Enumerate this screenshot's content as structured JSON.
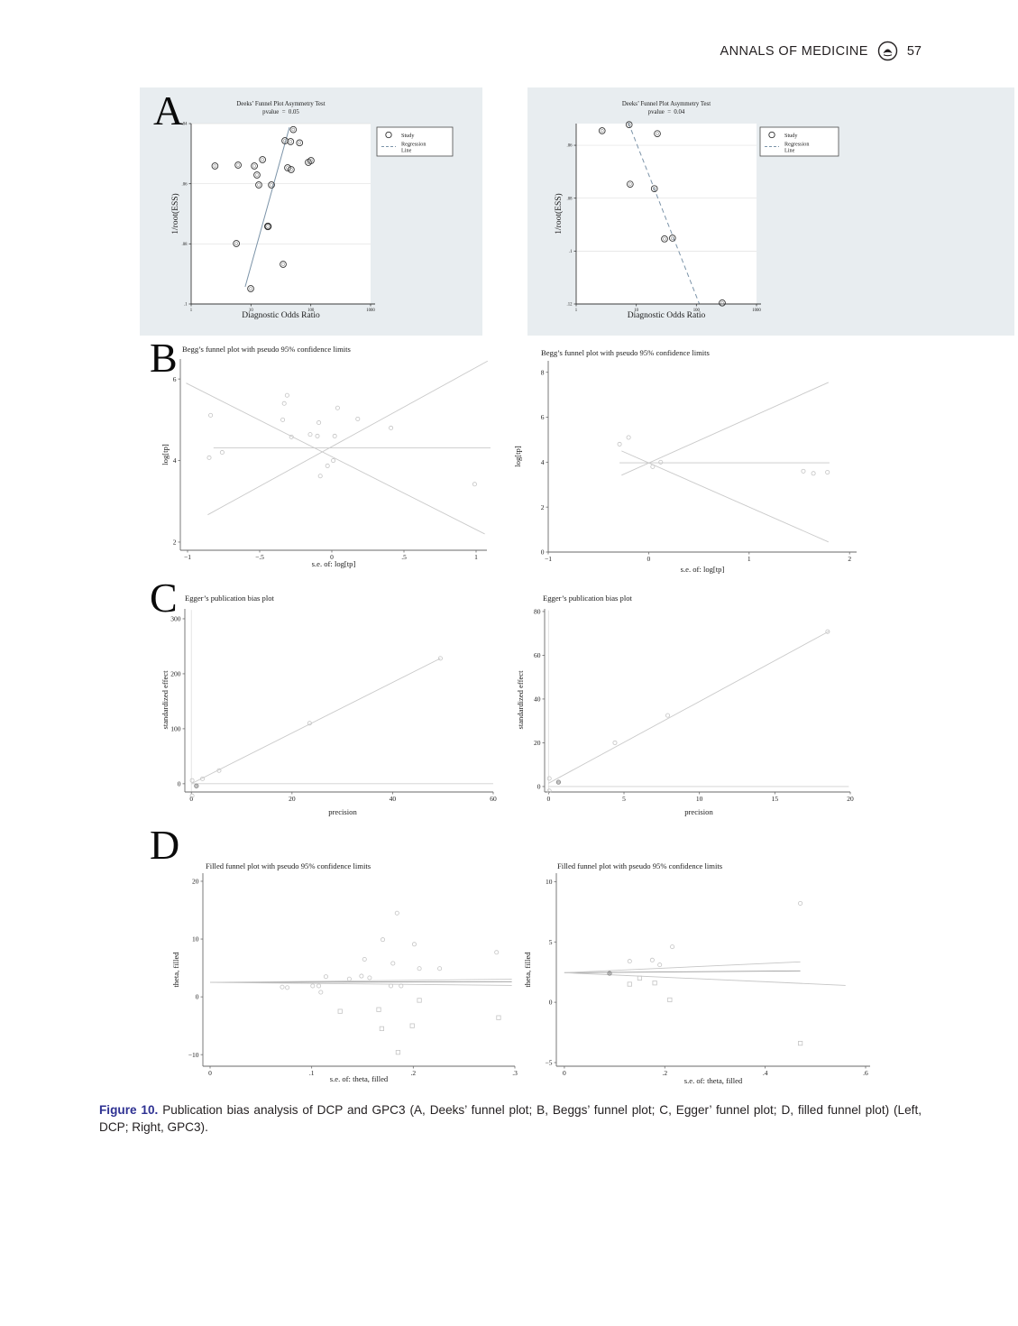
{
  "header": {
    "journal": "ANNALS OF MEDICINE",
    "page_number": "57"
  },
  "panels": [
    {
      "letter": "A"
    },
    {
      "letter": "B"
    },
    {
      "letter": "C"
    },
    {
      "letter": "D"
    }
  ],
  "caption": {
    "label": "Figure 10.",
    "text": " Publication bias analysis of DCP and GPC3 (A, Deeks’ funnel plot; B, Beggs’ funnel plot; C, Egger’ funnel plot; D, filled funnel plot) (Left, DCP; Right, GPC3)."
  },
  "colors": {
    "panel_a_background": "#e8edf0",
    "figure_label": "#2e3192",
    "regression_line": "#7b93a8",
    "header_text": "#231f20"
  },
  "chart_data": [
    {
      "id": "deeks-dcp",
      "panel": "A",
      "side": "left",
      "type": "scatter",
      "title_lines": [
        "Deeks’ Funnel Plot Asymmetry Test",
        "pvalue  =  0.05"
      ],
      "xlabel": "Diagnostic Odds Ratio",
      "ylabel": "1/root(ESS)",
      "x_log": true,
      "x_domain": [
        1,
        1000
      ],
      "y_domain": [
        0.04,
        0.1
      ],
      "x_ticks": [
        {
          "v": 1,
          "l": "1"
        },
        {
          "v": 10,
          "l": "10"
        },
        {
          "v": 100,
          "l": "100"
        },
        {
          "v": 1000,
          "l": "1000"
        }
      ],
      "y_ticks": [
        {
          "v": 0.04,
          "l": ".04"
        },
        {
          "v": 0.06,
          "l": ".06"
        },
        {
          "v": 0.08,
          "l": ".08"
        },
        {
          "v": 0.1,
          "l": ".1"
        }
      ],
      "grid_y": true,
      "marker": "ring",
      "legend": {
        "items": [
          {
            "marker": "circle",
            "label": "Study"
          },
          {
            "marker": "dash",
            "label": "Regression\nLine"
          }
        ]
      },
      "points": [
        [
          51,
          0.042
        ],
        [
          37,
          0.0457
        ],
        [
          46,
          0.046
        ],
        [
          65,
          0.0464
        ],
        [
          15.6,
          0.052
        ],
        [
          6.1,
          0.0538
        ],
        [
          11.4,
          0.0541
        ],
        [
          2.5,
          0.0541
        ],
        [
          41,
          0.0547
        ],
        [
          47,
          0.0553
        ],
        [
          91,
          0.0529
        ],
        [
          101,
          0.0523
        ],
        [
          12.6,
          0.0571
        ],
        [
          13.5,
          0.0604
        ],
        [
          22,
          0.0604
        ],
        [
          5.7,
          0.0799
        ],
        [
          34.5,
          0.0868
        ],
        [
          9.9,
          0.0949
        ]
      ],
      "points_bold": [
        [
          19.2,
          0.0742
        ]
      ],
      "lines": [
        {
          "p": [
            [
              8,
              0.0943
            ],
            [
              44,
              0.0412
            ]
          ],
          "color": "#7b93a8",
          "w": 1
        }
      ]
    },
    {
      "id": "deeks-gpc3",
      "panel": "A",
      "side": "right",
      "type": "scatter",
      "title_lines": [
        "Deeks’ Funnel Plot Asymmetry Test",
        "pvalue  =  0.04"
      ],
      "xlabel": "Diagnostic Odds Ratio",
      "ylabel": "1/root(ESS)",
      "x_log": true,
      "x_domain": [
        1,
        1000
      ],
      "y_domain": [
        0.0518,
        0.12
      ],
      "x_ticks": [
        {
          "v": 1,
          "l": "1"
        },
        {
          "v": 10,
          "l": "10"
        },
        {
          "v": 100,
          "l": "100"
        },
        {
          "v": 1000,
          "l": "1000"
        }
      ],
      "y_ticks": [
        {
          "v": 0.06,
          "l": ".06"
        },
        {
          "v": 0.08,
          "l": ".08"
        },
        {
          "v": 0.1,
          "l": ".1"
        },
        {
          "v": 0.12,
          "l": ".12"
        }
      ],
      "grid_y": true,
      "marker": "ring",
      "legend": {
        "items": [
          {
            "marker": "circle",
            "label": "Study"
          },
          {
            "marker": "dash",
            "label": "Regression\nLine"
          }
        ]
      },
      "points": [
        [
          7.6,
          0.0522
        ],
        [
          2.7,
          0.0545
        ],
        [
          22.4,
          0.0556
        ],
        [
          7.9,
          0.0747
        ],
        [
          20,
          0.0764
        ],
        [
          29.5,
          0.0954
        ],
        [
          40,
          0.0951
        ],
        [
          269,
          0.1196
        ]
      ],
      "lines": [
        {
          "p": [
            [
              7.4,
              0.0515
            ],
            [
              112,
              0.12
            ]
          ],
          "color": "#7b93a8",
          "w": 1,
          "dash": true
        }
      ]
    },
    {
      "id": "begg-dcp",
      "panel": "B",
      "side": "left",
      "type": "scatter",
      "title_lines": [
        "Begg’s funnel plot with pseudo 95% confidence limits"
      ],
      "xlabel": "s.e. of: log[tp]",
      "ylabel": "log[tp]",
      "x_log": false,
      "x_domain": [
        -1.05,
        1.075
      ],
      "y_domain": [
        6.49,
        1.8
      ],
      "x_ticks": [
        {
          "v": -1,
          "l": "−1"
        },
        {
          "v": -0.5,
          "l": "−.5"
        },
        {
          "v": 0,
          "l": "0"
        },
        {
          "v": 0.5,
          "l": ".5"
        },
        {
          "v": 1,
          "l": "1"
        }
      ],
      "y_ticks": [
        {
          "v": 2,
          "l": "2"
        },
        {
          "v": 4,
          "l": "4"
        },
        {
          "v": 6,
          "l": "6"
        }
      ],
      "grid_y": false,
      "marker": "dot",
      "points": [
        [
          -0.84,
          5.11
        ],
        [
          -0.31,
          5.6
        ],
        [
          -0.33,
          5.4
        ],
        [
          0.04,
          5.29
        ],
        [
          0.18,
          5.02
        ],
        [
          -0.34,
          5.0
        ],
        [
          -0.09,
          4.93
        ],
        [
          0.41,
          4.8
        ],
        [
          -0.15,
          4.64
        ],
        [
          -0.1,
          4.6
        ],
        [
          0.02,
          4.6
        ],
        [
          -0.28,
          4.58
        ],
        [
          -0.85,
          4.07
        ],
        [
          -0.76,
          4.2
        ],
        [
          0.01,
          4.0
        ],
        [
          -0.03,
          3.87
        ],
        [
          -0.08,
          3.62
        ],
        [
          0.99,
          3.42
        ]
      ],
      "lines": [
        {
          "p": [
            [
              -0.82,
              4.31
            ],
            [
              1.1,
              4.31
            ]
          ],
          "color": "#c9c9c9"
        },
        {
          "p": [
            [
              -1.01,
              5.9
            ],
            [
              1.06,
              2.2
            ]
          ],
          "color": "#c9c9c9"
        },
        {
          "p": [
            [
              -0.86,
              2.67
            ],
            [
              1.08,
              6.44
            ]
          ],
          "color": "#c9c9c9"
        }
      ]
    },
    {
      "id": "begg-gpc3",
      "panel": "B",
      "side": "right",
      "type": "scatter",
      "title_lines": [
        "Begg’s funnel plot with pseudo 95% confidence limits"
      ],
      "xlabel": "s.e. of: log[tp]",
      "ylabel": "log[tp]",
      "x_log": false,
      "x_domain": [
        -1.0,
        2.07
      ],
      "y_domain": [
        8.51,
        0
      ],
      "x_ticks": [
        {
          "v": -1,
          "l": "−1"
        },
        {
          "v": 0,
          "l": "0"
        },
        {
          "v": 1,
          "l": "1"
        },
        {
          "v": 2,
          "l": "2"
        }
      ],
      "y_ticks": [
        {
          "v": 0,
          "l": "0"
        },
        {
          "v": 2,
          "l": "2"
        },
        {
          "v": 4,
          "l": "4"
        },
        {
          "v": 6,
          "l": "6"
        },
        {
          "v": 8,
          "l": "8"
        }
      ],
      "grid_y": false,
      "marker": "dot",
      "points": [
        [
          -0.29,
          4.8
        ],
        [
          -0.2,
          5.1
        ],
        [
          0.12,
          4.0
        ],
        [
          0.04,
          3.8
        ],
        [
          1.54,
          3.6
        ],
        [
          1.64,
          3.5
        ],
        [
          1.78,
          3.55
        ]
      ],
      "lines": [
        {
          "p": [
            [
              -0.29,
              3.97
            ],
            [
              1.8,
              3.97
            ]
          ],
          "color": "#c9c9c9"
        },
        {
          "p": [
            [
              -0.27,
              3.42
            ],
            [
              1.79,
              7.55
            ]
          ],
          "color": "#c9c9c9"
        },
        {
          "p": [
            [
              -0.27,
              4.5
            ],
            [
              1.79,
              0.45
            ]
          ],
          "color": "#c9c9c9"
        }
      ]
    },
    {
      "id": "egger-dcp",
      "panel": "C",
      "side": "left",
      "type": "scatter",
      "title_lines": [
        "Egger’s publication bias plot"
      ],
      "xlabel": "precision",
      "ylabel": "standardized effect",
      "x_log": false,
      "x_domain": [
        -1.3,
        60.0
      ],
      "y_domain": [
        318,
        -15
      ],
      "x_ticks": [
        {
          "v": 0,
          "l": "0"
        },
        {
          "v": 20,
          "l": "20"
        },
        {
          "v": 40,
          "l": "40"
        },
        {
          "v": 60,
          "l": "60"
        }
      ],
      "y_ticks": [
        {
          "v": 0,
          "l": "0"
        },
        {
          "v": 100,
          "l": "100"
        },
        {
          "v": 200,
          "l": "200"
        },
        {
          "v": 300,
          "l": "300"
        }
      ],
      "grid_y": false,
      "marker": "dot",
      "points": [
        [
          0.15,
          6
        ],
        [
          0.15,
          -22
        ],
        [
          2.2,
          9
        ],
        [
          5.5,
          24
        ],
        [
          23.5,
          110
        ],
        [
          49.5,
          228
        ]
      ],
      "points_bold": [
        [
          1.0,
          -4
        ]
      ],
      "lines": [
        {
          "p": [
            [
              0,
              -14
            ],
            [
              0,
              316
            ]
          ],
          "color": "#e0e0e0"
        },
        {
          "p": [
            [
              0,
              0
            ],
            [
              60,
              0
            ]
          ],
          "color": "#cfcfcf"
        },
        {
          "p": [
            [
              0.2,
              1
            ],
            [
              49.5,
              228
            ]
          ],
          "color": "#c9c9c9"
        }
      ]
    },
    {
      "id": "egger-gpc3",
      "panel": "C",
      "side": "right",
      "type": "scatter",
      "title_lines": [
        "Egger’s publication bias plot"
      ],
      "xlabel": "precision",
      "ylabel": "standardized effect",
      "x_log": false,
      "x_domain": [
        -0.26,
        20.0
      ],
      "y_domain": [
        81.2,
        -2.5
      ],
      "x_ticks": [
        {
          "v": 0,
          "l": "0"
        },
        {
          "v": 5,
          "l": "5"
        },
        {
          "v": 10,
          "l": "10"
        },
        {
          "v": 15,
          "l": "15"
        },
        {
          "v": 20,
          "l": "20"
        }
      ],
      "y_ticks": [
        {
          "v": 0,
          "l": "0"
        },
        {
          "v": 20,
          "l": "20"
        },
        {
          "v": 40,
          "l": "40"
        },
        {
          "v": 60,
          "l": "60"
        },
        {
          "v": 80,
          "l": "80"
        }
      ],
      "grid_y": false,
      "marker": "dot",
      "points": [
        [
          0.05,
          3.7
        ],
        [
          0.05,
          -2
        ],
        [
          4.4,
          20
        ],
        [
          7.9,
          32.5
        ],
        [
          18.5,
          70.8
        ]
      ],
      "points_bold": [
        [
          0.66,
          2.0
        ]
      ],
      "lines": [
        {
          "p": [
            [
              0,
              -2.3
            ],
            [
              0,
              80.5
            ]
          ],
          "color": "#e0e0e0"
        },
        {
          "p": [
            [
              0,
              0
            ],
            [
              19.9,
              0
            ]
          ],
          "color": "#cfcfcf"
        },
        {
          "p": [
            [
              0,
              1.5
            ],
            [
              18.6,
              71
            ]
          ],
          "color": "#c9c9c9"
        }
      ]
    },
    {
      "id": "filled-dcp",
      "panel": "D",
      "side": "left",
      "type": "scatter",
      "title_lines": [
        "Filled funnel plot with pseudo 95% confidence limits"
      ],
      "xlabel": "s.e. of: theta, filled",
      "ylabel": "theta, filled",
      "x_log": false,
      "x_domain": [
        -0.0071,
        0.3
      ],
      "y_domain": [
        21.4,
        -12
      ],
      "x_ticks": [
        {
          "v": 0,
          "l": "0"
        },
        {
          "v": 0.1,
          "l": ".1"
        },
        {
          "v": 0.2,
          "l": ".2"
        },
        {
          "v": 0.3,
          "l": ".3"
        }
      ],
      "y_ticks": [
        {
          "v": -10,
          "l": "−10"
        },
        {
          "v": 0,
          "l": "0"
        },
        {
          "v": 10,
          "l": "10"
        },
        {
          "v": 20,
          "l": "20"
        }
      ],
      "grid_y": false,
      "marker": "dot",
      "points": [
        [
          0.184,
          14.5
        ],
        [
          0.17,
          9.9
        ],
        [
          0.201,
          9.1
        ],
        [
          0.152,
          6.5
        ],
        [
          0.18,
          5.8
        ],
        [
          0.206,
          4.9
        ],
        [
          0.226,
          4.9
        ],
        [
          0.282,
          7.7
        ],
        [
          0.071,
          1.7
        ],
        [
          0.076,
          1.6
        ],
        [
          0.101,
          1.9
        ],
        [
          0.107,
          1.9
        ],
        [
          0.114,
          3.5
        ],
        [
          0.137,
          3.1
        ],
        [
          0.149,
          3.6
        ],
        [
          0.157,
          3.3
        ],
        [
          0.178,
          1.9
        ],
        [
          0.188,
          1.9
        ],
        [
          0.109,
          0.8
        ]
      ],
      "points_sq": [
        [
          0.128,
          -2.5
        ],
        [
          0.166,
          -2.2
        ],
        [
          0.169,
          -5.5
        ],
        [
          0.185,
          -9.6
        ],
        [
          0.199,
          -5.0
        ],
        [
          0.206,
          -0.6
        ],
        [
          0.284,
          -3.6
        ]
      ],
      "lines": [
        {
          "p": [
            [
              0,
              2.5
            ],
            [
              0.297,
              2.62
            ]
          ],
          "color": "#9a9a9a"
        },
        {
          "p": [
            [
              0,
              2.5
            ],
            [
              0.297,
              3.05
            ]
          ],
          "color": "#c6c6c6"
        },
        {
          "p": [
            [
              0,
              2.5
            ],
            [
              0.297,
              1.98
            ]
          ],
          "color": "#c6c6c6"
        }
      ]
    },
    {
      "id": "filled-gpc3",
      "panel": "D",
      "side": "right",
      "type": "scatter",
      "title_lines": [
        "Filled funnel plot with pseudo 95% confidence limits"
      ],
      "xlabel": "s.e. of: theta, filled",
      "ylabel": "theta, filled",
      "x_log": false,
      "x_domain": [
        -0.016,
        0.609
      ],
      "y_domain": [
        10.7,
        -5.3
      ],
      "x_ticks": [
        {
          "v": 0,
          "l": "0"
        },
        {
          "v": 0.2,
          "l": ".2"
        },
        {
          "v": 0.4,
          "l": ".4"
        },
        {
          "v": 0.6,
          "l": ".6"
        }
      ],
      "y_ticks": [
        {
          "v": -5,
          "l": "−5"
        },
        {
          "v": 0,
          "l": "0"
        },
        {
          "v": 5,
          "l": "5"
        },
        {
          "v": 10,
          "l": "10"
        }
      ],
      "grid_y": false,
      "marker": "dot",
      "points": [
        [
          0.47,
          8.2
        ],
        [
          0.215,
          4.6
        ],
        [
          0.13,
          3.4
        ],
        [
          0.175,
          3.5
        ],
        [
          0.19,
          3.1
        ]
      ],
      "points_bold": [
        [
          0.09,
          2.4
        ]
      ],
      "points_sq": [
        [
          0.13,
          1.5
        ],
        [
          0.15,
          2.0
        ],
        [
          0.18,
          1.6
        ],
        [
          0.21,
          0.2
        ],
        [
          0.47,
          -3.4
        ]
      ],
      "lines": [
        {
          "p": [
            [
              0,
              2.45
            ],
            [
              0.47,
              2.6
            ]
          ],
          "color": "#9a9a9a"
        },
        {
          "p": [
            [
              0,
              2.45
            ],
            [
              0.47,
              3.35
            ]
          ],
          "color": "#c6c6c6"
        },
        {
          "p": [
            [
              0,
              2.45
            ],
            [
              0.56,
              1.4
            ]
          ],
          "color": "#c6c6c6"
        }
      ]
    }
  ]
}
